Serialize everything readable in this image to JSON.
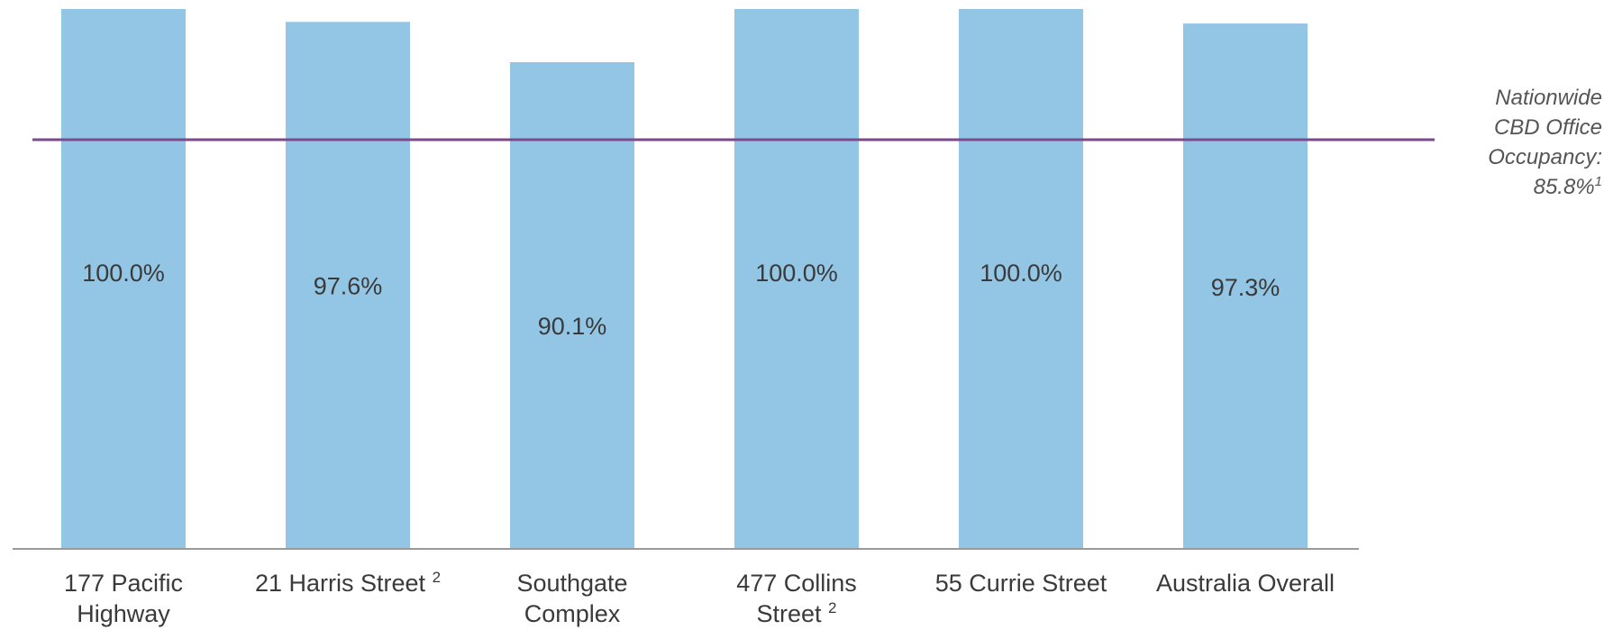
{
  "chart_data": {
    "type": "bar",
    "categories": [
      {
        "text": "177 Pacific Highway",
        "footnote": ""
      },
      {
        "text": "21 Harris Street",
        "footnote": "2"
      },
      {
        "text": "Southgate Complex",
        "footnote": ""
      },
      {
        "text": "477 Collins Street",
        "footnote": "2"
      },
      {
        "text": "55 Currie Street",
        "footnote": ""
      },
      {
        "text": "Australia Overall",
        "footnote": ""
      }
    ],
    "values": [
      100.0,
      97.6,
      90.1,
      100.0,
      100.0,
      97.3
    ],
    "data_labels": [
      "100.0%",
      "97.6%",
      "90.1%",
      "100.0%",
      "100.0%",
      "97.3%"
    ],
    "ylim": [
      0,
      100
    ],
    "reference_line": {
      "value": 85.8,
      "label_lines": [
        "Nationwide",
        "CBD Office",
        "Occupancy:",
        "85.8%"
      ],
      "footnote": "1"
    },
    "colors": {
      "bar": "#93c5e4",
      "reference_line": "#7b4a8c",
      "axis": "#9a9a9a",
      "text": "#3a3a3a"
    }
  }
}
